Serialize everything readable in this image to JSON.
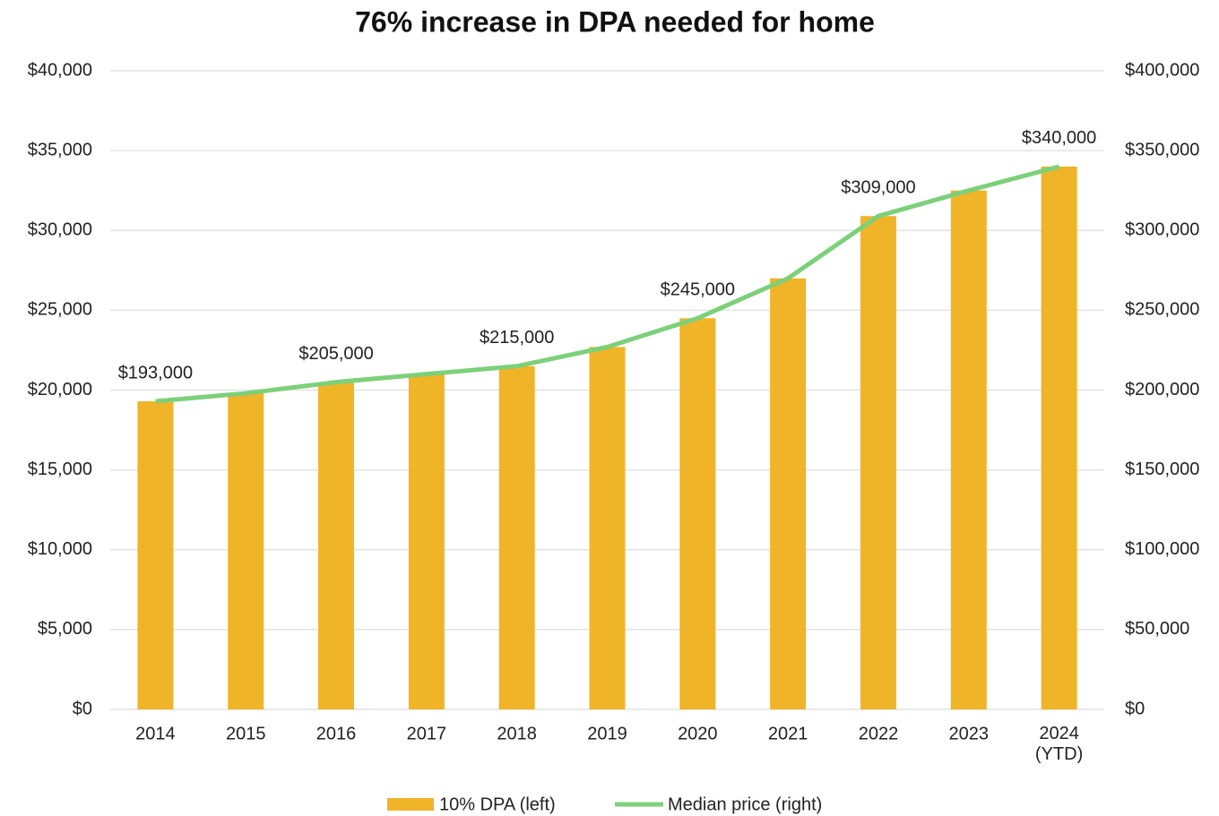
{
  "chart_data": {
    "type": "bar+line",
    "title": "76% increase in DPA needed for home",
    "categories": [
      "2014",
      "2015",
      "2016",
      "2017",
      "2018",
      "2019",
      "2020",
      "2021",
      "2022",
      "2023",
      "2024\n(YTD)"
    ],
    "series": [
      {
        "name": "10% DPA (left)",
        "type": "bar",
        "axis": "y",
        "color": "#F0B429",
        "values": [
          19300,
          19800,
          20500,
          21000,
          21500,
          22700,
          24500,
          27000,
          30900,
          32500,
          34000
        ]
      },
      {
        "name": "Median price (right)",
        "type": "line",
        "axis": "y2",
        "color": "#7DD07A",
        "values": [
          193000,
          198000,
          205000,
          210000,
          215000,
          227000,
          245000,
          270000,
          309000,
          325000,
          340000
        ],
        "value_labels": [
          "$193,000",
          null,
          "$205,000",
          null,
          "$215,000",
          null,
          "$245,000",
          null,
          "$309,000",
          null,
          "$340,000"
        ]
      }
    ],
    "ylim": [
      0,
      40000
    ],
    "yticks": [
      {
        "value": 0,
        "label": "$0"
      },
      {
        "value": 5000,
        "label": "$5,000"
      },
      {
        "value": 10000,
        "label": "$10,000"
      },
      {
        "value": 15000,
        "label": "$15,000"
      },
      {
        "value": 20000,
        "label": "$20,000"
      },
      {
        "value": 25000,
        "label": "$25,000"
      },
      {
        "value": 30000,
        "label": "$30,000"
      },
      {
        "value": 35000,
        "label": "$35,000"
      },
      {
        "value": 40000,
        "label": "$40,000"
      }
    ],
    "y2lim": [
      0,
      400000
    ],
    "y2ticks": [
      {
        "value": 0,
        "label": "$0"
      },
      {
        "value": 50000,
        "label": "$50,000"
      },
      {
        "value": 100000,
        "label": "$100,000"
      },
      {
        "value": 150000,
        "label": "$150,000"
      },
      {
        "value": 200000,
        "label": "$200,000"
      },
      {
        "value": 250000,
        "label": "$250,000"
      },
      {
        "value": 300000,
        "label": "$300,000"
      },
      {
        "value": 350000,
        "label": "$350,000"
      },
      {
        "value": 400000,
        "label": "$400,000"
      }
    ],
    "grid": true,
    "legend": "bottom"
  }
}
